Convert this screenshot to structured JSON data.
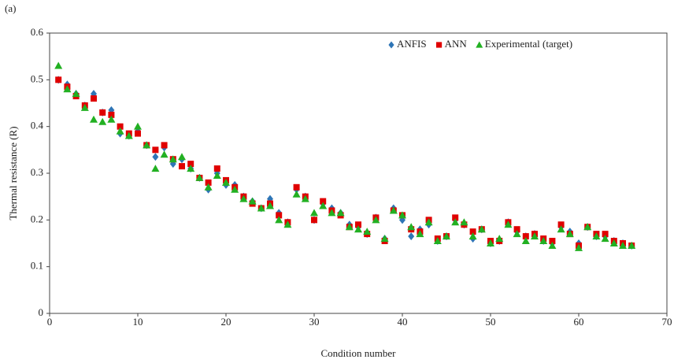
{
  "chart_data": {
    "type": "scatter",
    "panel_label": "(a)",
    "x_label": "Condition number",
    "y_label": "Thermal resistance (R)",
    "xlim": [
      0,
      70
    ],
    "xticks": [
      0,
      10,
      20,
      30,
      40,
      50,
      60,
      70
    ],
    "ylim": [
      0,
      0.6
    ],
    "yticks": [
      0,
      0.1,
      0.2,
      0.3,
      0.4,
      0.5,
      0.6
    ],
    "legend": "top-right",
    "x": [
      1,
      2,
      3,
      4,
      5,
      6,
      7,
      8,
      9,
      10,
      11,
      12,
      13,
      14,
      15,
      16,
      17,
      18,
      19,
      20,
      21,
      22,
      23,
      24,
      25,
      26,
      27,
      28,
      29,
      30,
      31,
      32,
      33,
      34,
      35,
      36,
      37,
      38,
      39,
      40,
      41,
      42,
      43,
      44,
      45,
      46,
      47,
      48,
      49,
      50,
      51,
      52,
      53,
      54,
      55,
      56,
      57,
      58,
      59,
      60,
      61,
      62,
      63,
      64,
      65,
      66
    ],
    "series": [
      {
        "name": "ANFIS",
        "color": "#2e75b6",
        "marker": "diamond",
        "values": [
          0.5,
          0.49,
          0.47,
          0.445,
          0.47,
          0.43,
          0.435,
          0.385,
          0.38,
          0.39,
          0.36,
          0.335,
          0.355,
          0.32,
          0.33,
          0.31,
          0.29,
          0.265,
          0.3,
          0.275,
          0.275,
          0.25,
          0.24,
          0.225,
          0.245,
          0.215,
          0.195,
          0.265,
          0.25,
          0.2,
          0.235,
          0.225,
          0.215,
          0.19,
          0.185,
          0.17,
          0.205,
          0.16,
          0.225,
          0.2,
          0.165,
          0.18,
          0.19,
          0.155,
          0.165,
          0.2,
          0.19,
          0.16,
          0.18,
          0.15,
          0.155,
          0.195,
          0.175,
          0.165,
          0.17,
          0.155,
          0.15,
          0.185,
          0.175,
          0.15,
          0.185,
          0.165,
          0.165,
          0.155,
          0.15,
          0.145
        ]
      },
      {
        "name": "ANN",
        "color": "#e00000",
        "marker": "square",
        "values": [
          0.5,
          0.485,
          0.465,
          0.445,
          0.46,
          0.43,
          0.425,
          0.4,
          0.385,
          0.385,
          0.36,
          0.35,
          0.36,
          0.33,
          0.315,
          0.32,
          0.29,
          0.28,
          0.31,
          0.285,
          0.27,
          0.25,
          0.235,
          0.225,
          0.235,
          0.21,
          0.195,
          0.27,
          0.25,
          0.2,
          0.24,
          0.22,
          0.21,
          0.185,
          0.19,
          0.17,
          0.205,
          0.155,
          0.22,
          0.21,
          0.18,
          0.175,
          0.2,
          0.16,
          0.165,
          0.205,
          0.19,
          0.175,
          0.18,
          0.155,
          0.155,
          0.195,
          0.18,
          0.165,
          0.17,
          0.16,
          0.155,
          0.19,
          0.17,
          0.145,
          0.185,
          0.17,
          0.17,
          0.155,
          0.15,
          0.145
        ]
      },
      {
        "name": "Experimental (target)",
        "color": "#22b022",
        "marker": "triangle",
        "values": [
          0.53,
          0.48,
          0.47,
          0.44,
          0.415,
          0.41,
          0.415,
          0.39,
          0.38,
          0.4,
          0.36,
          0.31,
          0.34,
          0.33,
          0.335,
          0.31,
          0.29,
          0.27,
          0.295,
          0.28,
          0.265,
          0.245,
          0.24,
          0.225,
          0.23,
          0.2,
          0.19,
          0.255,
          0.245,
          0.215,
          0.23,
          0.215,
          0.215,
          0.185,
          0.18,
          0.175,
          0.2,
          0.16,
          0.22,
          0.21,
          0.185,
          0.17,
          0.195,
          0.155,
          0.165,
          0.195,
          0.195,
          0.165,
          0.18,
          0.15,
          0.16,
          0.19,
          0.17,
          0.155,
          0.165,
          0.155,
          0.145,
          0.18,
          0.17,
          0.14,
          0.185,
          0.165,
          0.16,
          0.15,
          0.145,
          0.145
        ]
      }
    ]
  }
}
